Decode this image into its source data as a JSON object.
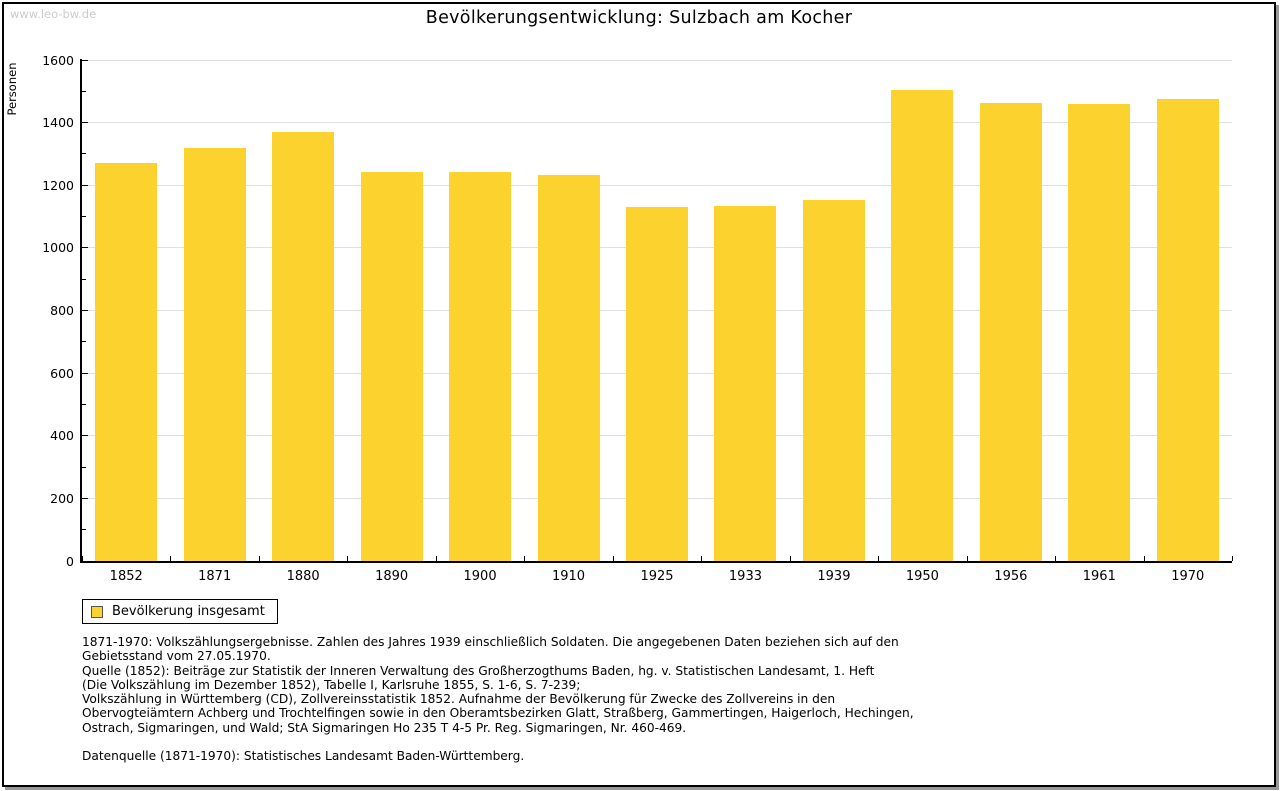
{
  "watermark": "www.leo-bw.de",
  "title": "Bevölkerungsentwicklung: Sulzbach am Kocher",
  "legend": {
    "label": "Bevölkerung insgesamt"
  },
  "footnotes": [
    "1871-1970: Volkszählungsergebnisse. Zahlen des Jahres 1939 einschließlich Soldaten. Die angegebenen Daten beziehen sich auf den",
    "Gebietsstand vom 27.05.1970.",
    "Quelle (1852): Beiträge zur Statistik der Inneren Verwaltung des Großherzogthums Baden, hg. v. Statistischen Landesamt, 1. Heft",
    "(Die Volkszählung im Dezember 1852), Tabelle I, Karlsruhe 1855, S. 1-6, S. 7-239;",
    "Volkszählung in Württemberg (CD), Zollvereinsstatistik 1852. Aufnahme der Bevölkerung für Zwecke des Zollvereins in den",
    "Obervogteiämtern Achberg und Trochtelfingen sowie in den Oberamtsbezirken Glatt, Straßberg, Gammertingen, Haigerloch, Hechingen,",
    "Ostrach, Sigmaringen, und Wald; StA Sigmaringen Ho 235 T 4-5 Pr. Reg. Sigmaringen, Nr. 460-469."
  ],
  "datasource": "Datenquelle (1871-1970): Statistisches Landesamt Baden-Württemberg.",
  "chart_data": {
    "type": "bar",
    "categories": [
      "1852",
      "1871",
      "1880",
      "1890",
      "1900",
      "1910",
      "1925",
      "1933",
      "1939",
      "1950",
      "1956",
      "1961",
      "1970"
    ],
    "values": [
      1270,
      1320,
      1369,
      1241,
      1243,
      1233,
      1131,
      1135,
      1152,
      1505,
      1462,
      1459,
      1477
    ],
    "title": "Bevölkerungsentwicklung: Sulzbach am Kocher",
    "xlabel": "",
    "ylabel": "Personen",
    "ylim": [
      0,
      1600
    ],
    "ytick_step": 200,
    "yminor_step": 100,
    "grid": true,
    "gridline_color": "#e0e0e0",
    "axis_color": "#000000",
    "bar_color": "#FCD22F",
    "legend_entries": [
      "Bevölkerung insgesamt"
    ],
    "legend_position": "bottom-left"
  }
}
